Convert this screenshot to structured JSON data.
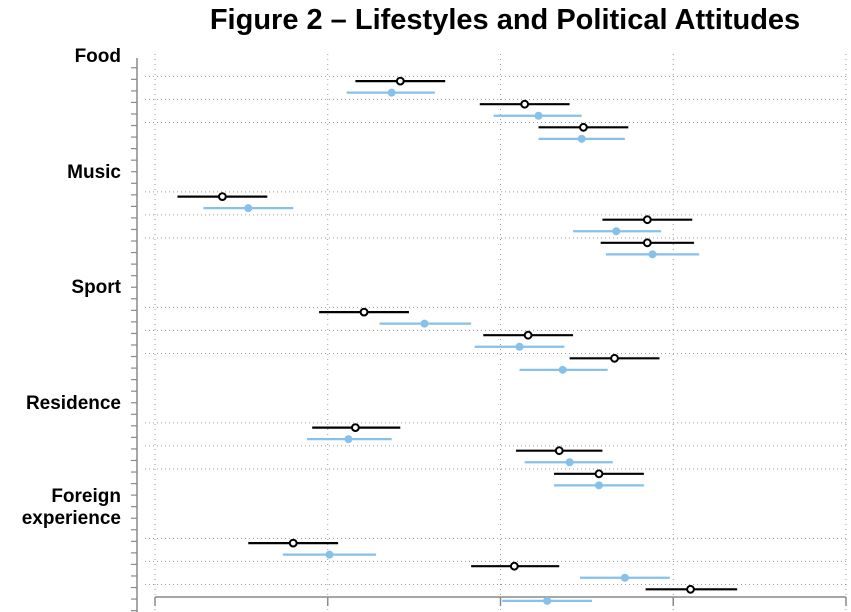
{
  "chart_data": {
    "type": "dot-whisker",
    "title": "Figure 2 – Lifestyles and Political Attitudes",
    "xlabel": "",
    "ylabel": "",
    "xlim": [
      0,
      4
    ],
    "x_ticks": [
      0,
      1,
      2,
      3,
      4
    ],
    "grid": true,
    "legend": "none",
    "series": [
      {
        "marker": "open-circle",
        "color": "#000000"
      },
      {
        "marker": "filled-circle",
        "color": "#85C1E9"
      }
    ],
    "groups": [
      {
        "label": "Food",
        "estimates": [
          {
            "series": 0,
            "value": 1.42,
            "low": 1.16,
            "high": 1.68
          },
          {
            "series": 1,
            "value": 1.37,
            "low": 1.11,
            "high": 1.62
          },
          {
            "series": 0,
            "value": 2.14,
            "low": 1.88,
            "high": 2.4
          },
          {
            "series": 1,
            "value": 2.22,
            "low": 1.96,
            "high": 2.47
          },
          {
            "series": 0,
            "value": 2.48,
            "low": 2.22,
            "high": 2.74
          },
          {
            "series": 1,
            "value": 2.47,
            "low": 2.22,
            "high": 2.72
          }
        ]
      },
      {
        "label": "Music",
        "estimates": [
          {
            "series": 0,
            "value": 0.39,
            "low": 0.13,
            "high": 0.65
          },
          {
            "series": 1,
            "value": 0.54,
            "low": 0.28,
            "high": 0.8
          },
          {
            "series": 0,
            "value": 2.85,
            "low": 2.59,
            "high": 3.11
          },
          {
            "series": 1,
            "value": 2.67,
            "low": 2.42,
            "high": 2.93
          },
          {
            "series": 0,
            "value": 2.85,
            "low": 2.58,
            "high": 3.12
          },
          {
            "series": 1,
            "value": 2.88,
            "low": 2.61,
            "high": 3.15
          }
        ]
      },
      {
        "label": "Sport",
        "estimates": [
          {
            "series": 0,
            "value": 1.21,
            "low": 0.95,
            "high": 1.47
          },
          {
            "series": 1,
            "value": 1.56,
            "low": 1.3,
            "high": 1.83
          },
          {
            "series": 0,
            "value": 2.16,
            "low": 1.9,
            "high": 2.42
          },
          {
            "series": 1,
            "value": 2.11,
            "low": 1.85,
            "high": 2.37
          },
          {
            "series": 0,
            "value": 2.66,
            "low": 2.4,
            "high": 2.92
          },
          {
            "series": 1,
            "value": 2.36,
            "low": 2.11,
            "high": 2.62
          }
        ]
      },
      {
        "label": "Residence",
        "estimates": [
          {
            "series": 0,
            "value": 1.16,
            "low": 0.91,
            "high": 1.42
          },
          {
            "series": 1,
            "value": 1.12,
            "low": 0.88,
            "high": 1.37
          },
          {
            "series": 0,
            "value": 2.34,
            "low": 2.09,
            "high": 2.59
          },
          {
            "series": 1,
            "value": 2.4,
            "low": 2.14,
            "high": 2.65
          },
          {
            "series": 0,
            "value": 2.57,
            "low": 2.31,
            "high": 2.83
          },
          {
            "series": 1,
            "value": 2.57,
            "low": 2.31,
            "high": 2.83
          }
        ]
      },
      {
        "label": "Foreign experience",
        "label_lines": [
          "Foreign",
          "experience"
        ],
        "estimates": [
          {
            "series": 0,
            "value": 0.8,
            "low": 0.54,
            "high": 1.06
          },
          {
            "series": 1,
            "value": 1.01,
            "low": 0.74,
            "high": 1.28
          },
          {
            "series": 0,
            "value": 2.08,
            "low": 1.83,
            "high": 2.34
          },
          {
            "series": 1,
            "value": 2.72,
            "low": 2.46,
            "high": 2.98
          },
          {
            "series": 0,
            "value": 3.1,
            "low": 2.84,
            "high": 3.37
          },
          {
            "series": 1,
            "value": 2.27,
            "low": 2.01,
            "high": 2.53
          }
        ]
      }
    ]
  }
}
